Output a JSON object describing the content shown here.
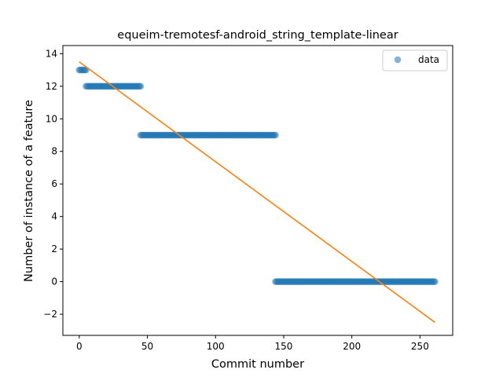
{
  "chart_data": {
    "type": "scatter",
    "title": "equeim-tremotesf-android_string_template-linear",
    "xlabel": "Commit number",
    "ylabel": "Number of instance of a feature",
    "xlim": [
      -12,
      274
    ],
    "ylim": [
      -3.3,
      14.5
    ],
    "xticks": [
      0,
      50,
      100,
      150,
      200,
      250
    ],
    "yticks": [
      -2,
      0,
      2,
      4,
      6,
      8,
      10,
      12,
      14
    ],
    "xtick_labels": [
      "0",
      "50",
      "100",
      "150",
      "200",
      "250"
    ],
    "ytick_labels": [
      "−2",
      "0",
      "2",
      "4",
      "6",
      "8",
      "10",
      "12",
      "14"
    ],
    "legend": {
      "position": "top-right"
    },
    "series": [
      {
        "name": "data",
        "kind": "scatter",
        "color": "#1f77b4",
        "segments": [
          {
            "x_start": 0,
            "x_end": 5,
            "y": 13
          },
          {
            "x_start": 5,
            "x_end": 45,
            "y": 12
          },
          {
            "x_start": 45,
            "x_end": 144,
            "y": 9
          },
          {
            "x_start": 144,
            "x_end": 261,
            "y": 0
          }
        ]
      },
      {
        "kind": "line",
        "color": "#ff7f0e",
        "x": [
          0,
          261
        ],
        "y": [
          13.5,
          -2.5
        ]
      }
    ]
  }
}
